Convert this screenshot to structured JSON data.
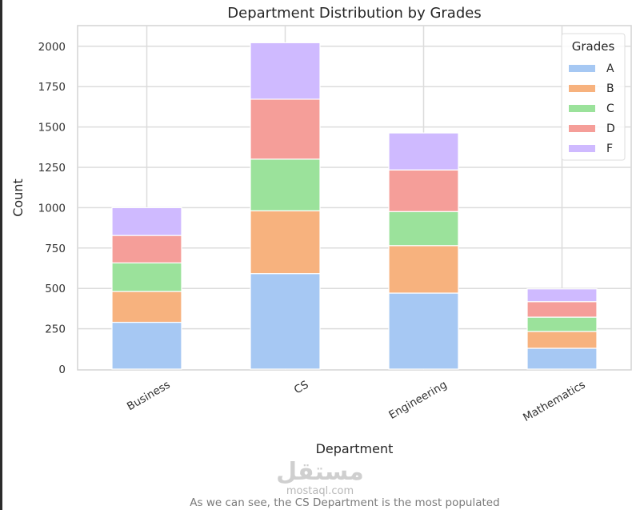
{
  "chart_data": {
    "type": "bar",
    "stacked": true,
    "title": "Department Distribution by Grades",
    "xlabel": "Department",
    "ylabel": "Count",
    "categories": [
      "Business",
      "CS",
      "Engineering",
      "Mathematics"
    ],
    "series": [
      {
        "name": "A",
        "color": "#a6c8f3",
        "values": [
          290,
          592,
          471,
          129
        ]
      },
      {
        "name": "B",
        "color": "#f7b27e",
        "values": [
          191,
          389,
          294,
          104
        ]
      },
      {
        "name": "C",
        "color": "#9be29b",
        "values": [
          177,
          320,
          211,
          89
        ]
      },
      {
        "name": "D",
        "color": "#f59e99",
        "values": [
          170,
          371,
          258,
          96
        ]
      },
      {
        "name": "F",
        "color": "#cfbaff",
        "values": [
          172,
          350,
          229,
          79
        ]
      }
    ],
    "ylim": [
      0,
      2125
    ],
    "yticks": [
      0,
      250,
      500,
      750,
      1000,
      1250,
      1500,
      1750,
      2000
    ],
    "xtick_rotation_deg": 30,
    "grid": true,
    "legend": {
      "title": "Grades",
      "placement": "top-right"
    }
  },
  "watermark": {
    "arabic": "مستقل",
    "latin": "mostaql.com"
  },
  "caption": "As we can see, the CS Department is the most populated"
}
